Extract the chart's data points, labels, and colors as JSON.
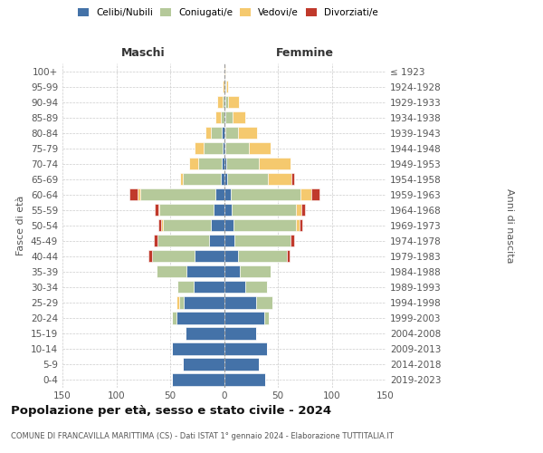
{
  "age_groups": [
    "0-4",
    "5-9",
    "10-14",
    "15-19",
    "20-24",
    "25-29",
    "30-34",
    "35-39",
    "40-44",
    "45-49",
    "50-54",
    "55-59",
    "60-64",
    "65-69",
    "70-74",
    "75-79",
    "80-84",
    "85-89",
    "90-94",
    "95-99",
    "100+"
  ],
  "birth_years": [
    "2019-2023",
    "2014-2018",
    "2009-2013",
    "2004-2008",
    "1999-2003",
    "1994-1998",
    "1989-1993",
    "1984-1988",
    "1979-1983",
    "1974-1978",
    "1969-1973",
    "1964-1968",
    "1959-1963",
    "1954-1958",
    "1949-1953",
    "1944-1948",
    "1939-1943",
    "1934-1938",
    "1929-1933",
    "1924-1928",
    "≤ 1923"
  ],
  "colors": {
    "celibi": "#4472a8",
    "coniugati": "#b5c99a",
    "vedovi": "#f5c96e",
    "divorziati": "#c0392b"
  },
  "maschi": {
    "celibi": [
      48,
      38,
      48,
      36,
      44,
      37,
      28,
      35,
      27,
      14,
      12,
      10,
      8,
      3,
      2,
      1,
      2,
      0,
      0,
      0,
      0
    ],
    "coniugati": [
      0,
      0,
      0,
      0,
      4,
      5,
      15,
      28,
      40,
      48,
      45,
      50,
      70,
      35,
      22,
      18,
      10,
      3,
      1,
      0,
      0
    ],
    "vedovi": [
      0,
      0,
      0,
      0,
      0,
      2,
      0,
      0,
      0,
      0,
      1,
      1,
      2,
      3,
      8,
      8,
      5,
      5,
      5,
      1,
      0
    ],
    "divorziati": [
      0,
      0,
      0,
      0,
      0,
      0,
      0,
      0,
      3,
      3,
      3,
      3,
      8,
      0,
      0,
      0,
      0,
      0,
      0,
      0,
      0
    ]
  },
  "femmine": {
    "celibi": [
      38,
      32,
      40,
      30,
      37,
      30,
      20,
      15,
      13,
      10,
      9,
      7,
      6,
      3,
      2,
      1,
      1,
      1,
      1,
      1,
      0
    ],
    "coniugati": [
      0,
      0,
      0,
      0,
      5,
      15,
      20,
      28,
      45,
      52,
      58,
      60,
      65,
      38,
      30,
      22,
      12,
      7,
      3,
      1,
      0
    ],
    "vedovi": [
      0,
      0,
      0,
      0,
      0,
      0,
      0,
      0,
      0,
      0,
      3,
      5,
      10,
      22,
      30,
      20,
      18,
      12,
      10,
      2,
      1
    ],
    "divorziati": [
      0,
      0,
      0,
      0,
      0,
      0,
      0,
      0,
      3,
      3,
      3,
      3,
      8,
      2,
      0,
      0,
      0,
      0,
      0,
      0,
      0
    ]
  },
  "xlim": 150,
  "title": "Popolazione per età, sesso e stato civile - 2024",
  "subtitle": "COMUNE DI FRANCAVILLA MARITTIMA (CS) - Dati ISTAT 1° gennaio 2024 - Elaborazione TUTTITALIA.IT",
  "ylabel_left": "Fasce di età",
  "ylabel_right": "Anni di nascita",
  "xlabel_maschi": "Maschi",
  "xlabel_femmine": "Femmine",
  "bg_color": "#ffffff",
  "grid_color": "#cccccc",
  "legend_labels": [
    "Celibi/Nubili",
    "Coniugati/e",
    "Vedovi/e",
    "Divorziati/e"
  ]
}
